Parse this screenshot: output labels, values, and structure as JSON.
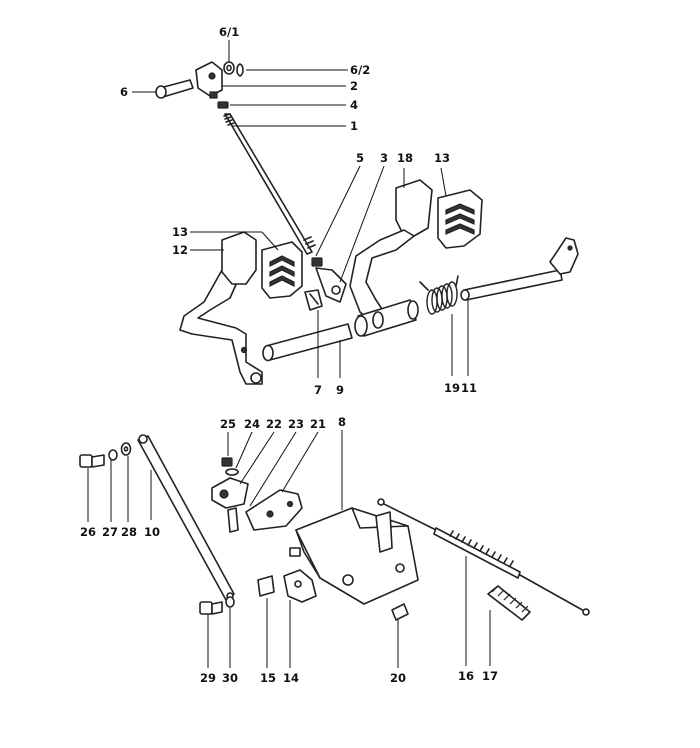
{
  "labels": [
    {
      "id": "6-1",
      "text": "6/1"
    },
    {
      "id": "6-2",
      "text": "6/2"
    },
    {
      "id": "6",
      "text": "6"
    },
    {
      "id": "2",
      "text": "2"
    },
    {
      "id": "4",
      "text": "4"
    },
    {
      "id": "1",
      "text": "1"
    },
    {
      "id": "5",
      "text": "5"
    },
    {
      "id": "3",
      "text": "3"
    },
    {
      "id": "18",
      "text": "18"
    },
    {
      "id": "13a",
      "text": "13"
    },
    {
      "id": "13b",
      "text": "13"
    },
    {
      "id": "12",
      "text": "12"
    },
    {
      "id": "7",
      "text": "7"
    },
    {
      "id": "9",
      "text": "9"
    },
    {
      "id": "19",
      "text": "19"
    },
    {
      "id": "11",
      "text": "11"
    },
    {
      "id": "25",
      "text": "25"
    },
    {
      "id": "24",
      "text": "24"
    },
    {
      "id": "22",
      "text": "22"
    },
    {
      "id": "23",
      "text": "23"
    },
    {
      "id": "21",
      "text": "21"
    },
    {
      "id": "8",
      "text": "8"
    },
    {
      "id": "26",
      "text": "26"
    },
    {
      "id": "27",
      "text": "27"
    },
    {
      "id": "28",
      "text": "28"
    },
    {
      "id": "10",
      "text": "10"
    },
    {
      "id": "29",
      "text": "29"
    },
    {
      "id": "30",
      "text": "30"
    },
    {
      "id": "15",
      "text": "15"
    },
    {
      "id": "14",
      "text": "14"
    },
    {
      "id": "20",
      "text": "20"
    },
    {
      "id": "16",
      "text": "16"
    },
    {
      "id": "17",
      "text": "17"
    }
  ]
}
